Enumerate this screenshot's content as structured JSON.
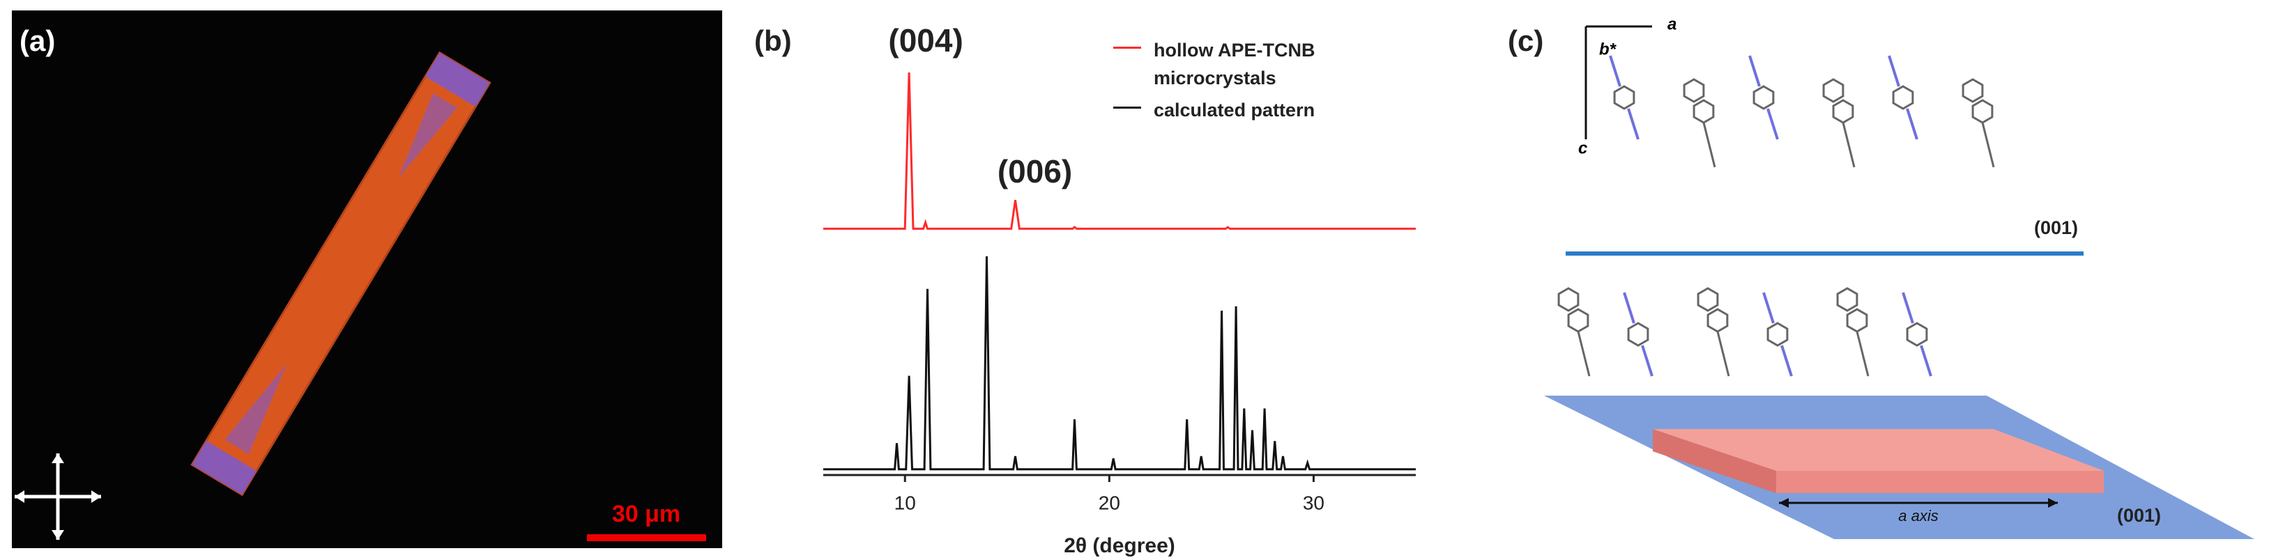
{
  "panels": {
    "a": {
      "label": "(a)",
      "scale_bar": "30 μm"
    },
    "b": {
      "label": "(b)"
    },
    "c": {
      "label": "(c)",
      "axis_a": "a",
      "axis_b": "b*",
      "axis_c": "c",
      "plane_top": "(001)",
      "plane_bottom": "(001)",
      "arrow_label": "a axis"
    }
  },
  "chart_data": {
    "type": "line",
    "xlabel": "2θ (degree)",
    "xlim": [
      6,
      35
    ],
    "xticks": [
      10,
      20,
      30
    ],
    "ylim": [
      0,
      100
    ],
    "annotations": [
      {
        "text": "(004)",
        "x": 10.2
      },
      {
        "text": "(006)",
        "x": 15.4
      }
    ],
    "series": [
      {
        "name": "hollow APE-TCNB microcrystals",
        "color": "#ff2a2a",
        "x": [
          6,
          10.0,
          10.2,
          10.4,
          10.9,
          11.0,
          11.1,
          15.2,
          15.4,
          15.6,
          18.2,
          18.3,
          18.4,
          25.7,
          25.8,
          25.9,
          35
        ],
        "values": [
          2,
          2,
          100,
          2,
          2,
          6,
          2,
          2,
          20,
          2,
          2,
          3,
          2,
          2,
          3,
          2,
          2
        ]
      },
      {
        "name": "calculated pattern",
        "color": "#111111",
        "x": [
          6,
          9.5,
          9.6,
          9.7,
          10.05,
          10.2,
          10.35,
          10.95,
          11.1,
          11.25,
          13.85,
          14.0,
          14.15,
          15.3,
          15.4,
          15.5,
          18.2,
          18.3,
          18.4,
          20.1,
          20.2,
          20.3,
          23.7,
          23.8,
          23.9,
          24.4,
          24.5,
          24.6,
          25.4,
          25.5,
          25.6,
          26.1,
          26.2,
          26.3,
          26.5,
          26.6,
          26.7,
          26.9,
          27.0,
          27.1,
          27.5,
          27.6,
          27.7,
          28.0,
          28.1,
          28.2,
          28.4,
          28.5,
          28.6,
          29.6,
          29.7,
          29.8,
          35
        ],
        "values": [
          2,
          2,
          14,
          2,
          2,
          45,
          2,
          2,
          85,
          2,
          2,
          100,
          2,
          2,
          8,
          2,
          2,
          25,
          2,
          2,
          7,
          2,
          2,
          25,
          2,
          2,
          8,
          2,
          2,
          75,
          2,
          2,
          77,
          2,
          2,
          30,
          2,
          2,
          20,
          2,
          2,
          30,
          2,
          2,
          15,
          2,
          2,
          8,
          2,
          2,
          5,
          2,
          2
        ]
      }
    ]
  }
}
